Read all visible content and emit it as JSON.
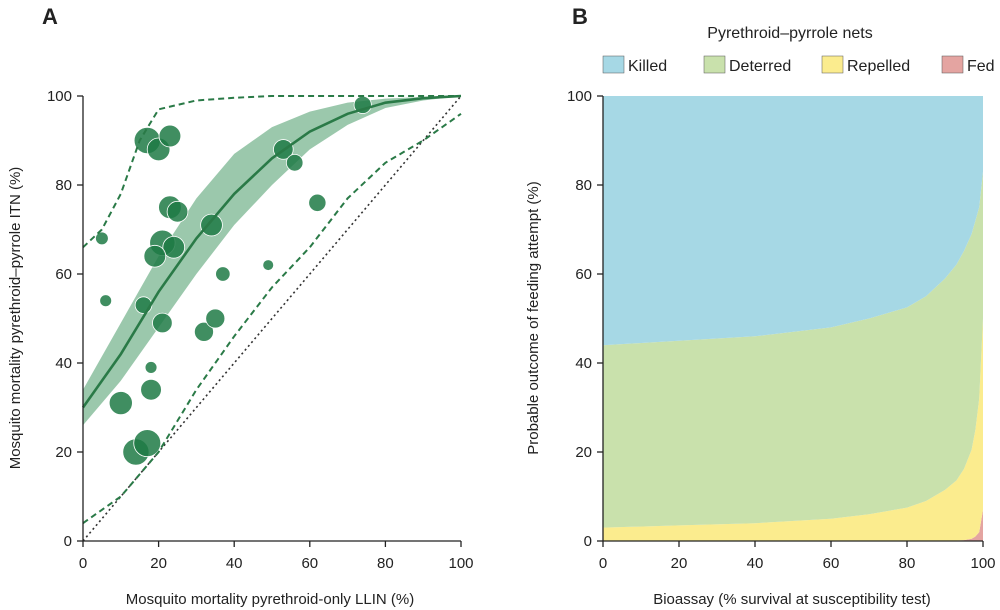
{
  "chart_data": [
    {
      "panel": "A",
      "type": "scatter",
      "xlabel": "Mosquito mortality pyrethroid-only LLIN (%)",
      "ylabel": "Mosquito mortality pyrethroid–pyrrole ITN (%)",
      "xlim": [
        0,
        100
      ],
      "ylim": [
        0,
        100
      ],
      "xticks": [
        0,
        20,
        40,
        60,
        80,
        100
      ],
      "yticks": [
        0,
        20,
        40,
        60,
        80,
        100
      ],
      "colors": {
        "point": "#1f7a45",
        "ribbon": "#79b690",
        "line": "#2a7a47",
        "identity": "#333333"
      },
      "points": [
        {
          "x": 17,
          "y": 90,
          "w": 3.0
        },
        {
          "x": 20,
          "y": 88,
          "w": 2.2
        },
        {
          "x": 23,
          "y": 91,
          "w": 2.0
        },
        {
          "x": 23,
          "y": 75,
          "w": 2.2
        },
        {
          "x": 25,
          "y": 74,
          "w": 1.8
        },
        {
          "x": 21,
          "y": 67,
          "w": 2.8
        },
        {
          "x": 24,
          "y": 66,
          "w": 2.0
        },
        {
          "x": 19,
          "y": 64,
          "w": 2.0
        },
        {
          "x": 34,
          "y": 71,
          "w": 2.0
        },
        {
          "x": 21,
          "y": 49,
          "w": 1.6
        },
        {
          "x": 16,
          "y": 53,
          "w": 1.1
        },
        {
          "x": 32,
          "y": 47,
          "w": 1.5
        },
        {
          "x": 35,
          "y": 50,
          "w": 1.5
        },
        {
          "x": 37,
          "y": 60,
          "w": 0.8
        },
        {
          "x": 5,
          "y": 68,
          "w": 0.6
        },
        {
          "x": 6,
          "y": 54,
          "w": 0.5
        },
        {
          "x": 10,
          "y": 31,
          "w": 2.3
        },
        {
          "x": 18,
          "y": 34,
          "w": 1.8
        },
        {
          "x": 18,
          "y": 39,
          "w": 0.5
        },
        {
          "x": 14,
          "y": 20,
          "w": 3.0
        },
        {
          "x": 17,
          "y": 22,
          "w": 3.2
        },
        {
          "x": 53,
          "y": 88,
          "w": 1.6
        },
        {
          "x": 56,
          "y": 85,
          "w": 1.1
        },
        {
          "x": 62,
          "y": 76,
          "w": 1.2
        },
        {
          "x": 49,
          "y": 62,
          "w": 0.4
        },
        {
          "x": 74,
          "y": 98,
          "w": 1.2
        }
      ],
      "fit": {
        "x": [
          0,
          10,
          20,
          30,
          40,
          50,
          60,
          70,
          80,
          90,
          100
        ],
        "y": [
          30,
          42,
          56,
          68,
          78,
          86,
          92,
          96,
          98.5,
          99.5,
          100
        ]
      },
      "ribbon_lower": [
        26,
        36,
        48,
        60,
        71,
        80,
        88,
        93.5,
        97.3,
        99,
        100
      ],
      "ribbon_upper": [
        34,
        49,
        64,
        77,
        87,
        93,
        96.5,
        98.5,
        99.4,
        99.8,
        100
      ],
      "pred_upper": {
        "x": [
          0,
          5,
          10,
          15,
          20,
          30,
          40,
          50,
          60,
          70,
          80,
          90,
          100
        ],
        "y": [
          66,
          70,
          78,
          90,
          97,
          99,
          99.6,
          100,
          100,
          100,
          100,
          100,
          100
        ]
      },
      "pred_lower": {
        "x": [
          0,
          10,
          20,
          30,
          40,
          50,
          60,
          70,
          80,
          90,
          100
        ],
        "y": [
          4,
          10,
          20,
          34,
          46,
          57,
          66,
          77,
          85,
          90,
          96
        ]
      }
    },
    {
      "panel": "B",
      "type": "area",
      "title": "Pyrethroid–pyrrole nets",
      "xlabel": "Bioassay (% survival at susceptibility test)",
      "ylabel": "Probable outcome of feeding attempt (%)",
      "xlim": [
        0,
        100
      ],
      "ylim": [
        0,
        100
      ],
      "xticks": [
        0,
        20,
        40,
        60,
        80,
        100
      ],
      "yticks": [
        0,
        20,
        40,
        60,
        80,
        100
      ],
      "x": [
        0,
        20,
        40,
        60,
        70,
        80,
        85,
        90,
        93,
        95,
        97,
        98,
        99,
        100
      ],
      "series": [
        {
          "name": "Fed",
          "color": "#e4a4a1",
          "values": [
            0,
            0,
            0,
            0,
            0,
            0,
            0,
            0,
            0.1,
            0.2,
            0.5,
            1,
            2,
            7
          ]
        },
        {
          "name": "Repelled",
          "color": "#fbec8e",
          "values": [
            3,
            3.5,
            4,
            5,
            6,
            7.5,
            9,
            11.5,
            13.5,
            16,
            20,
            24,
            30,
            43
          ]
        },
        {
          "name": "Deterred",
          "color": "#c9e1ac",
          "values": [
            41,
            41.5,
            42,
            43,
            44,
            45,
            46,
            47.5,
            48.5,
            49,
            48.5,
            47,
            43,
            33
          ]
        },
        {
          "name": "Killed",
          "color": "#a6d8e5",
          "values": [
            56,
            55,
            54,
            52,
            50,
            47.5,
            45,
            41,
            37.9,
            34.8,
            31,
            28,
            25,
            17
          ]
        }
      ],
      "legend_order": [
        "Killed",
        "Deterred",
        "Repelled",
        "Fed"
      ]
    }
  ]
}
